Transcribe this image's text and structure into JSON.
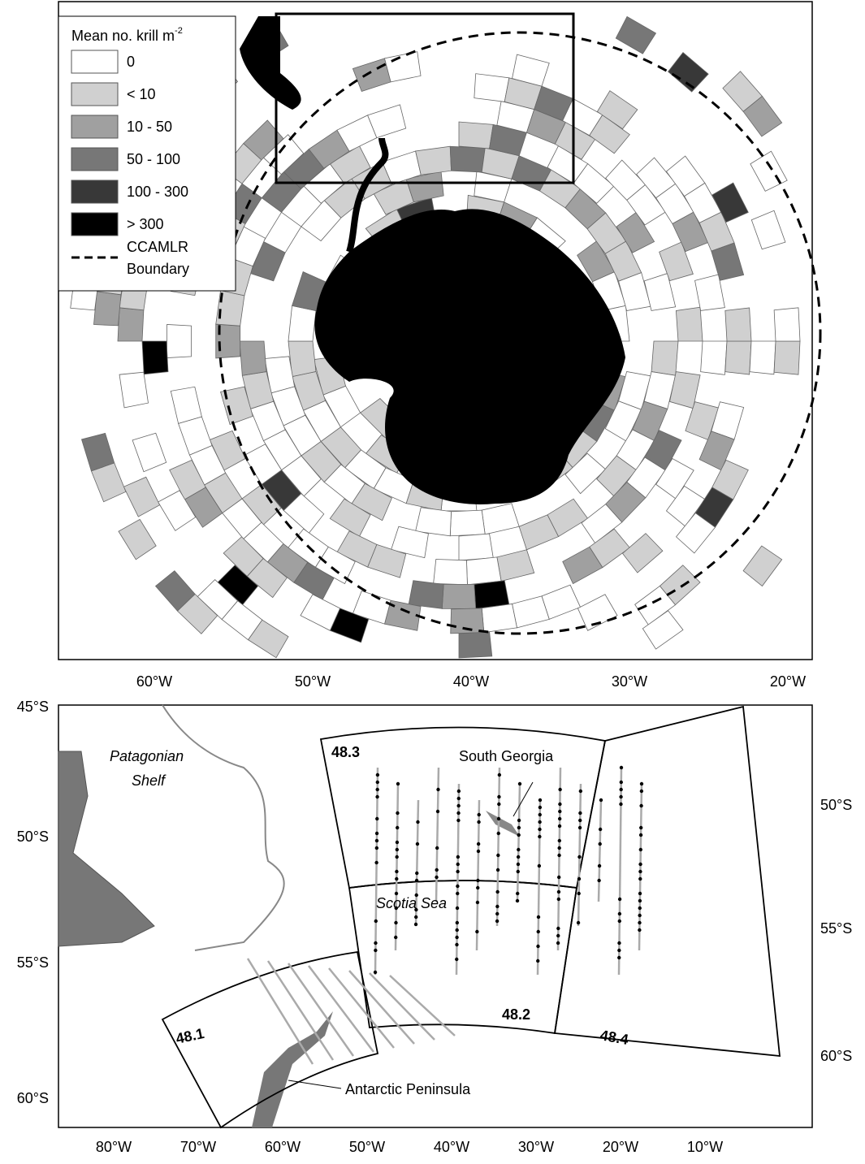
{
  "top_map": {
    "legend": {
      "title": "Mean no. krill m",
      "title_superscript": "-2",
      "entries": [
        "0",
        "< 10",
        "10 - 50",
        "50 - 100",
        "100 - 300",
        "> 300"
      ],
      "boundary": [
        "CCAMLR",
        "Boundary"
      ]
    },
    "x_labels": [
      "60°W",
      "50°W",
      "40°W",
      "30°W",
      "20°W"
    ]
  },
  "bottom_map": {
    "left_labels": [
      "45°S",
      "50°S",
      "55°S",
      "60°S"
    ],
    "right_labels": [
      "50°S",
      "55°S",
      "60°S"
    ],
    "x_labels": [
      "80°W",
      "70°W",
      "60°W",
      "50°W",
      "40°W",
      "30°W",
      "20°W",
      "10°W"
    ],
    "areas": [
      "48.3",
      "48.2",
      "48.1",
      "48.4"
    ],
    "places": {
      "south_georgia": "South Georgia",
      "patagonian_shelf": [
        "Patagonian",
        "Shelf"
      ],
      "scotia_sea": "Scotia Sea",
      "antarctic_peninsula": "Antarctic Peninsula"
    }
  }
}
